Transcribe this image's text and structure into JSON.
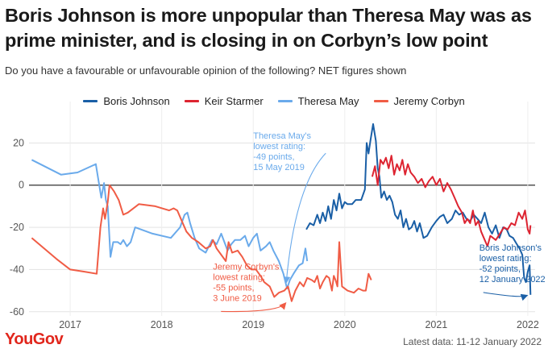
{
  "header": {
    "title": "Boris Johnson is more unpopular than Theresa May was as prime minister, and is closing in on Corbyn’s low point",
    "subtitle": "Do you have a favourable or unfavourable opinion of the following? NET figures shown"
  },
  "footer": {
    "brand": "YouGov",
    "note": "Latest data: 11-12 January 2022"
  },
  "colors": {
    "boris": "#1a5fa6",
    "starmer": "#dd2431",
    "may": "#6aaaeb",
    "corbyn": "#f05c45"
  },
  "chart_data": {
    "type": "line",
    "x_unit": "year",
    "xlim": [
      2016.55,
      2022.08
    ],
    "ylim": [
      -62,
      32
    ],
    "x_ticks": [
      2017,
      2018,
      2019,
      2020,
      2021,
      2022
    ],
    "y_ticks": [
      20,
      0,
      -20,
      -40,
      -60
    ],
    "grid": true,
    "legend_position": "top-center",
    "series": [
      {
        "key": "boris",
        "name": "Boris Johnson",
        "points": [
          [
            2019.58,
            -21
          ],
          [
            2019.62,
            -18
          ],
          [
            2019.66,
            -19
          ],
          [
            2019.7,
            -14
          ],
          [
            2019.73,
            -18
          ],
          [
            2019.76,
            -13
          ],
          [
            2019.79,
            -17
          ],
          [
            2019.82,
            -10
          ],
          [
            2019.85,
            -16
          ],
          [
            2019.88,
            -7
          ],
          [
            2019.91,
            -12
          ],
          [
            2019.94,
            -4
          ],
          [
            2019.97,
            -11
          ],
          [
            2020.0,
            -8
          ],
          [
            2020.03,
            -9
          ],
          [
            2020.08,
            -9
          ],
          [
            2020.12,
            -7
          ],
          [
            2020.18,
            -7
          ],
          [
            2020.22,
            -2
          ],
          [
            2020.24,
            20
          ],
          [
            2020.26,
            15
          ],
          [
            2020.28,
            21
          ],
          [
            2020.31,
            29
          ],
          [
            2020.34,
            21
          ],
          [
            2020.36,
            8
          ],
          [
            2020.38,
            4
          ],
          [
            2020.4,
            -6
          ],
          [
            2020.43,
            -3
          ],
          [
            2020.46,
            -7
          ],
          [
            2020.49,
            -5
          ],
          [
            2020.52,
            -8
          ],
          [
            2020.55,
            -14
          ],
          [
            2020.58,
            -16
          ],
          [
            2020.61,
            -12
          ],
          [
            2020.64,
            -20
          ],
          [
            2020.67,
            -16
          ],
          [
            2020.7,
            -21
          ],
          [
            2020.73,
            -20
          ],
          [
            2020.76,
            -17
          ],
          [
            2020.79,
            -22
          ],
          [
            2020.82,
            -18
          ],
          [
            2020.86,
            -25
          ],
          [
            2020.9,
            -24
          ],
          [
            2020.95,
            -20
          ],
          [
            2021.0,
            -17
          ],
          [
            2021.04,
            -15
          ],
          [
            2021.08,
            -14
          ],
          [
            2021.12,
            -18
          ],
          [
            2021.17,
            -16
          ],
          [
            2021.21,
            -12
          ],
          [
            2021.25,
            -14
          ],
          [
            2021.29,
            -13
          ],
          [
            2021.33,
            -16
          ],
          [
            2021.37,
            -17
          ],
          [
            2021.41,
            -14
          ],
          [
            2021.45,
            -16
          ],
          [
            2021.49,
            -18
          ],
          [
            2021.53,
            -13
          ],
          [
            2021.57,
            -20
          ],
          [
            2021.61,
            -23
          ],
          [
            2021.65,
            -19
          ],
          [
            2021.69,
            -25
          ],
          [
            2021.73,
            -20
          ],
          [
            2021.77,
            -21
          ],
          [
            2021.8,
            -24
          ],
          [
            2021.84,
            -25
          ],
          [
            2021.88,
            -28
          ],
          [
            2021.91,
            -30
          ],
          [
            2021.94,
            -33
          ],
          [
            2021.96,
            -44
          ],
          [
            2021.98,
            -46
          ],
          [
            2022.0,
            -41
          ],
          [
            2022.02,
            -38
          ],
          [
            2022.03,
            -52
          ]
        ]
      },
      {
        "key": "starmer",
        "name": "Keir Starmer",
        "points": [
          [
            2020.3,
            4
          ],
          [
            2020.33,
            9
          ],
          [
            2020.36,
            0
          ],
          [
            2020.39,
            12
          ],
          [
            2020.42,
            10
          ],
          [
            2020.45,
            13
          ],
          [
            2020.48,
            8
          ],
          [
            2020.51,
            14
          ],
          [
            2020.54,
            5
          ],
          [
            2020.57,
            10
          ],
          [
            2020.6,
            7
          ],
          [
            2020.63,
            12
          ],
          [
            2020.66,
            5
          ],
          [
            2020.69,
            10
          ],
          [
            2020.72,
            6
          ],
          [
            2020.76,
            4
          ],
          [
            2020.8,
            1
          ],
          [
            2020.84,
            3
          ],
          [
            2020.88,
            -1
          ],
          [
            2020.92,
            2
          ],
          [
            2020.96,
            4
          ],
          [
            2021.0,
            0
          ],
          [
            2021.04,
            3
          ],
          [
            2021.08,
            -3
          ],
          [
            2021.12,
            1
          ],
          [
            2021.16,
            -2
          ],
          [
            2021.2,
            -6
          ],
          [
            2021.24,
            -10
          ],
          [
            2021.28,
            -13
          ],
          [
            2021.31,
            -18
          ],
          [
            2021.34,
            -16
          ],
          [
            2021.37,
            -18
          ],
          [
            2021.4,
            -12
          ],
          [
            2021.43,
            -19
          ],
          [
            2021.46,
            -17
          ],
          [
            2021.49,
            -22
          ],
          [
            2021.53,
            -26
          ],
          [
            2021.56,
            -29
          ],
          [
            2021.59,
            -24
          ],
          [
            2021.62,
            -25
          ],
          [
            2021.65,
            -26
          ],
          [
            2021.68,
            -24
          ],
          [
            2021.71,
            -22
          ],
          [
            2021.74,
            -20
          ],
          [
            2021.78,
            -21
          ],
          [
            2021.82,
            -18
          ],
          [
            2021.86,
            -19
          ],
          [
            2021.9,
            -13
          ],
          [
            2021.94,
            -16
          ],
          [
            2021.97,
            -12
          ],
          [
            2022.0,
            -21
          ],
          [
            2022.02,
            -23
          ],
          [
            2022.03,
            -19
          ]
        ]
      },
      {
        "key": "may",
        "name": "Theresa May",
        "points": [
          [
            2016.58,
            12
          ],
          [
            2016.9,
            5
          ],
          [
            2017.08,
            6
          ],
          [
            2017.28,
            10
          ],
          [
            2017.34,
            -6
          ],
          [
            2017.37,
            1
          ],
          [
            2017.39,
            -7
          ],
          [
            2017.41,
            -10
          ],
          [
            2017.44,
            -34
          ],
          [
            2017.47,
            -27
          ],
          [
            2017.52,
            -27
          ],
          [
            2017.55,
            -28
          ],
          [
            2017.58,
            -26
          ],
          [
            2017.62,
            -29
          ],
          [
            2017.66,
            -27
          ],
          [
            2017.71,
            -20
          ],
          [
            2017.9,
            -23
          ],
          [
            2018.1,
            -25
          ],
          [
            2018.2,
            -20
          ],
          [
            2018.25,
            -14
          ],
          [
            2018.28,
            -13
          ],
          [
            2018.31,
            -18
          ],
          [
            2018.36,
            -25
          ],
          [
            2018.41,
            -30
          ],
          [
            2018.48,
            -32
          ],
          [
            2018.55,
            -26
          ],
          [
            2018.6,
            -28
          ],
          [
            2018.65,
            -23
          ],
          [
            2018.72,
            -31
          ],
          [
            2018.76,
            -28
          ],
          [
            2018.8,
            -26
          ],
          [
            2018.86,
            -26
          ],
          [
            2018.91,
            -24
          ],
          [
            2018.95,
            -29
          ],
          [
            2019.0,
            -25
          ],
          [
            2019.04,
            -23
          ],
          [
            2019.08,
            -31
          ],
          [
            2019.14,
            -29
          ],
          [
            2019.18,
            -27
          ],
          [
            2019.22,
            -31
          ],
          [
            2019.28,
            -36
          ],
          [
            2019.33,
            -42
          ],
          [
            2019.37,
            -49
          ],
          [
            2019.4,
            -45
          ],
          [
            2019.44,
            -42
          ],
          [
            2019.5,
            -38
          ],
          [
            2019.54,
            -37
          ],
          [
            2019.57,
            -30
          ],
          [
            2019.59,
            -36
          ]
        ]
      },
      {
        "key": "corbyn",
        "name": "Jeremy Corbyn",
        "points": [
          [
            2016.58,
            -25
          ],
          [
            2016.85,
            -35
          ],
          [
            2017.0,
            -40
          ],
          [
            2017.15,
            -41
          ],
          [
            2017.29,
            -42
          ],
          [
            2017.33,
            -20
          ],
          [
            2017.36,
            -11
          ],
          [
            2017.38,
            -16
          ],
          [
            2017.41,
            -8
          ],
          [
            2017.43,
            0
          ],
          [
            2017.48,
            -3
          ],
          [
            2017.53,
            -7
          ],
          [
            2017.58,
            -14
          ],
          [
            2017.63,
            -13
          ],
          [
            2017.75,
            -9
          ],
          [
            2017.93,
            -10
          ],
          [
            2018.08,
            -12
          ],
          [
            2018.13,
            -11
          ],
          [
            2018.17,
            -12
          ],
          [
            2018.22,
            -17
          ],
          [
            2018.27,
            -22
          ],
          [
            2018.33,
            -25
          ],
          [
            2018.4,
            -27
          ],
          [
            2018.48,
            -30
          ],
          [
            2018.53,
            -29
          ],
          [
            2018.56,
            -26
          ],
          [
            2018.6,
            -30
          ],
          [
            2018.65,
            -33
          ],
          [
            2018.7,
            -36
          ],
          [
            2018.73,
            -27
          ],
          [
            2018.77,
            -32
          ],
          [
            2018.83,
            -31
          ],
          [
            2018.88,
            -34
          ],
          [
            2018.93,
            -38
          ],
          [
            2018.98,
            -40
          ],
          [
            2019.03,
            -40
          ],
          [
            2019.08,
            -43
          ],
          [
            2019.12,
            -46
          ],
          [
            2019.18,
            -48
          ],
          [
            2019.23,
            -53
          ],
          [
            2019.28,
            -51
          ],
          [
            2019.34,
            -50
          ],
          [
            2019.38,
            -48
          ],
          [
            2019.42,
            -55
          ],
          [
            2019.46,
            -50
          ],
          [
            2019.51,
            -46
          ],
          [
            2019.55,
            -48
          ],
          [
            2019.59,
            -44
          ],
          [
            2019.64,
            -45
          ],
          [
            2019.67,
            -46
          ],
          [
            2019.7,
            -43
          ],
          [
            2019.73,
            -49
          ],
          [
            2019.76,
            -46
          ],
          [
            2019.8,
            -43
          ],
          [
            2019.83,
            -44
          ],
          [
            2019.86,
            -50
          ],
          [
            2019.88,
            -43
          ],
          [
            2019.9,
            -45
          ],
          [
            2019.92,
            -48
          ],
          [
            2019.94,
            -27
          ],
          [
            2019.97,
            -48
          ],
          [
            2020.03,
            -50
          ],
          [
            2020.1,
            -51
          ],
          [
            2020.15,
            -49
          ],
          [
            2020.2,
            -50
          ],
          [
            2020.23,
            -50
          ],
          [
            2020.26,
            -42
          ],
          [
            2020.29,
            -45
          ]
        ]
      }
    ],
    "annotations": [
      {
        "key": "may",
        "lines": [
          "Theresa May's",
          "lowest rating:",
          "-49 points,",
          "15 May 2019"
        ],
        "point": [
          2019.37,
          -49
        ],
        "anchor": "start",
        "text_at": [
          2019.0,
          22
        ]
      },
      {
        "key": "corbyn",
        "lines": [
          "Jeremy Corbyn's",
          "lowest rating:",
          "-55 points,",
          "3 June 2019"
        ],
        "point": [
          2019.42,
          -55
        ],
        "anchor": "start",
        "text_at": [
          2018.56,
          -40
        ]
      },
      {
        "key": "boris",
        "lines": [
          "Boris Johnson's",
          "lowest rating:",
          "-52 points,",
          "12 January 2022"
        ],
        "point": [
          2022.03,
          -52
        ],
        "anchor": "start",
        "text_at": [
          2021.47,
          -31
        ]
      }
    ]
  }
}
